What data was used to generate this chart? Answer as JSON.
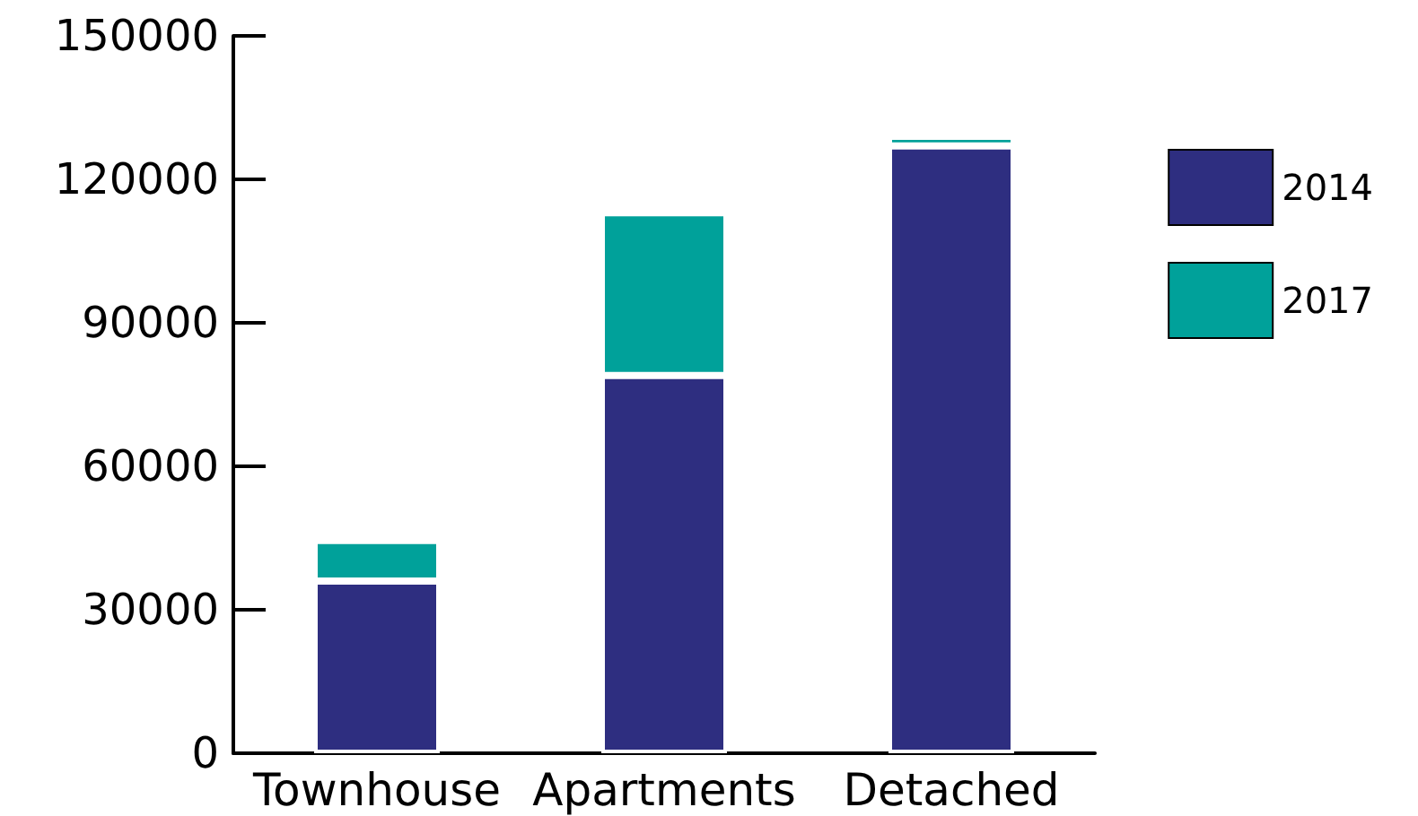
{
  "chart_data": {
    "type": "bar",
    "stacked": true,
    "categories": [
      "Townhouse",
      "Apartments",
      "Detached"
    ],
    "series": [
      {
        "name": "2014",
        "color": "#2e2e80",
        "values": [
          36000,
          79000,
          127000
        ]
      },
      {
        "name": "2017",
        "color": "#00a19a",
        "values": [
          8500,
          34000,
          2000
        ]
      }
    ],
    "ylim": [
      0,
      150000
    ],
    "yticks": [
      0,
      30000,
      60000,
      90000,
      120000,
      150000
    ],
    "grid": false,
    "legend": "right"
  }
}
